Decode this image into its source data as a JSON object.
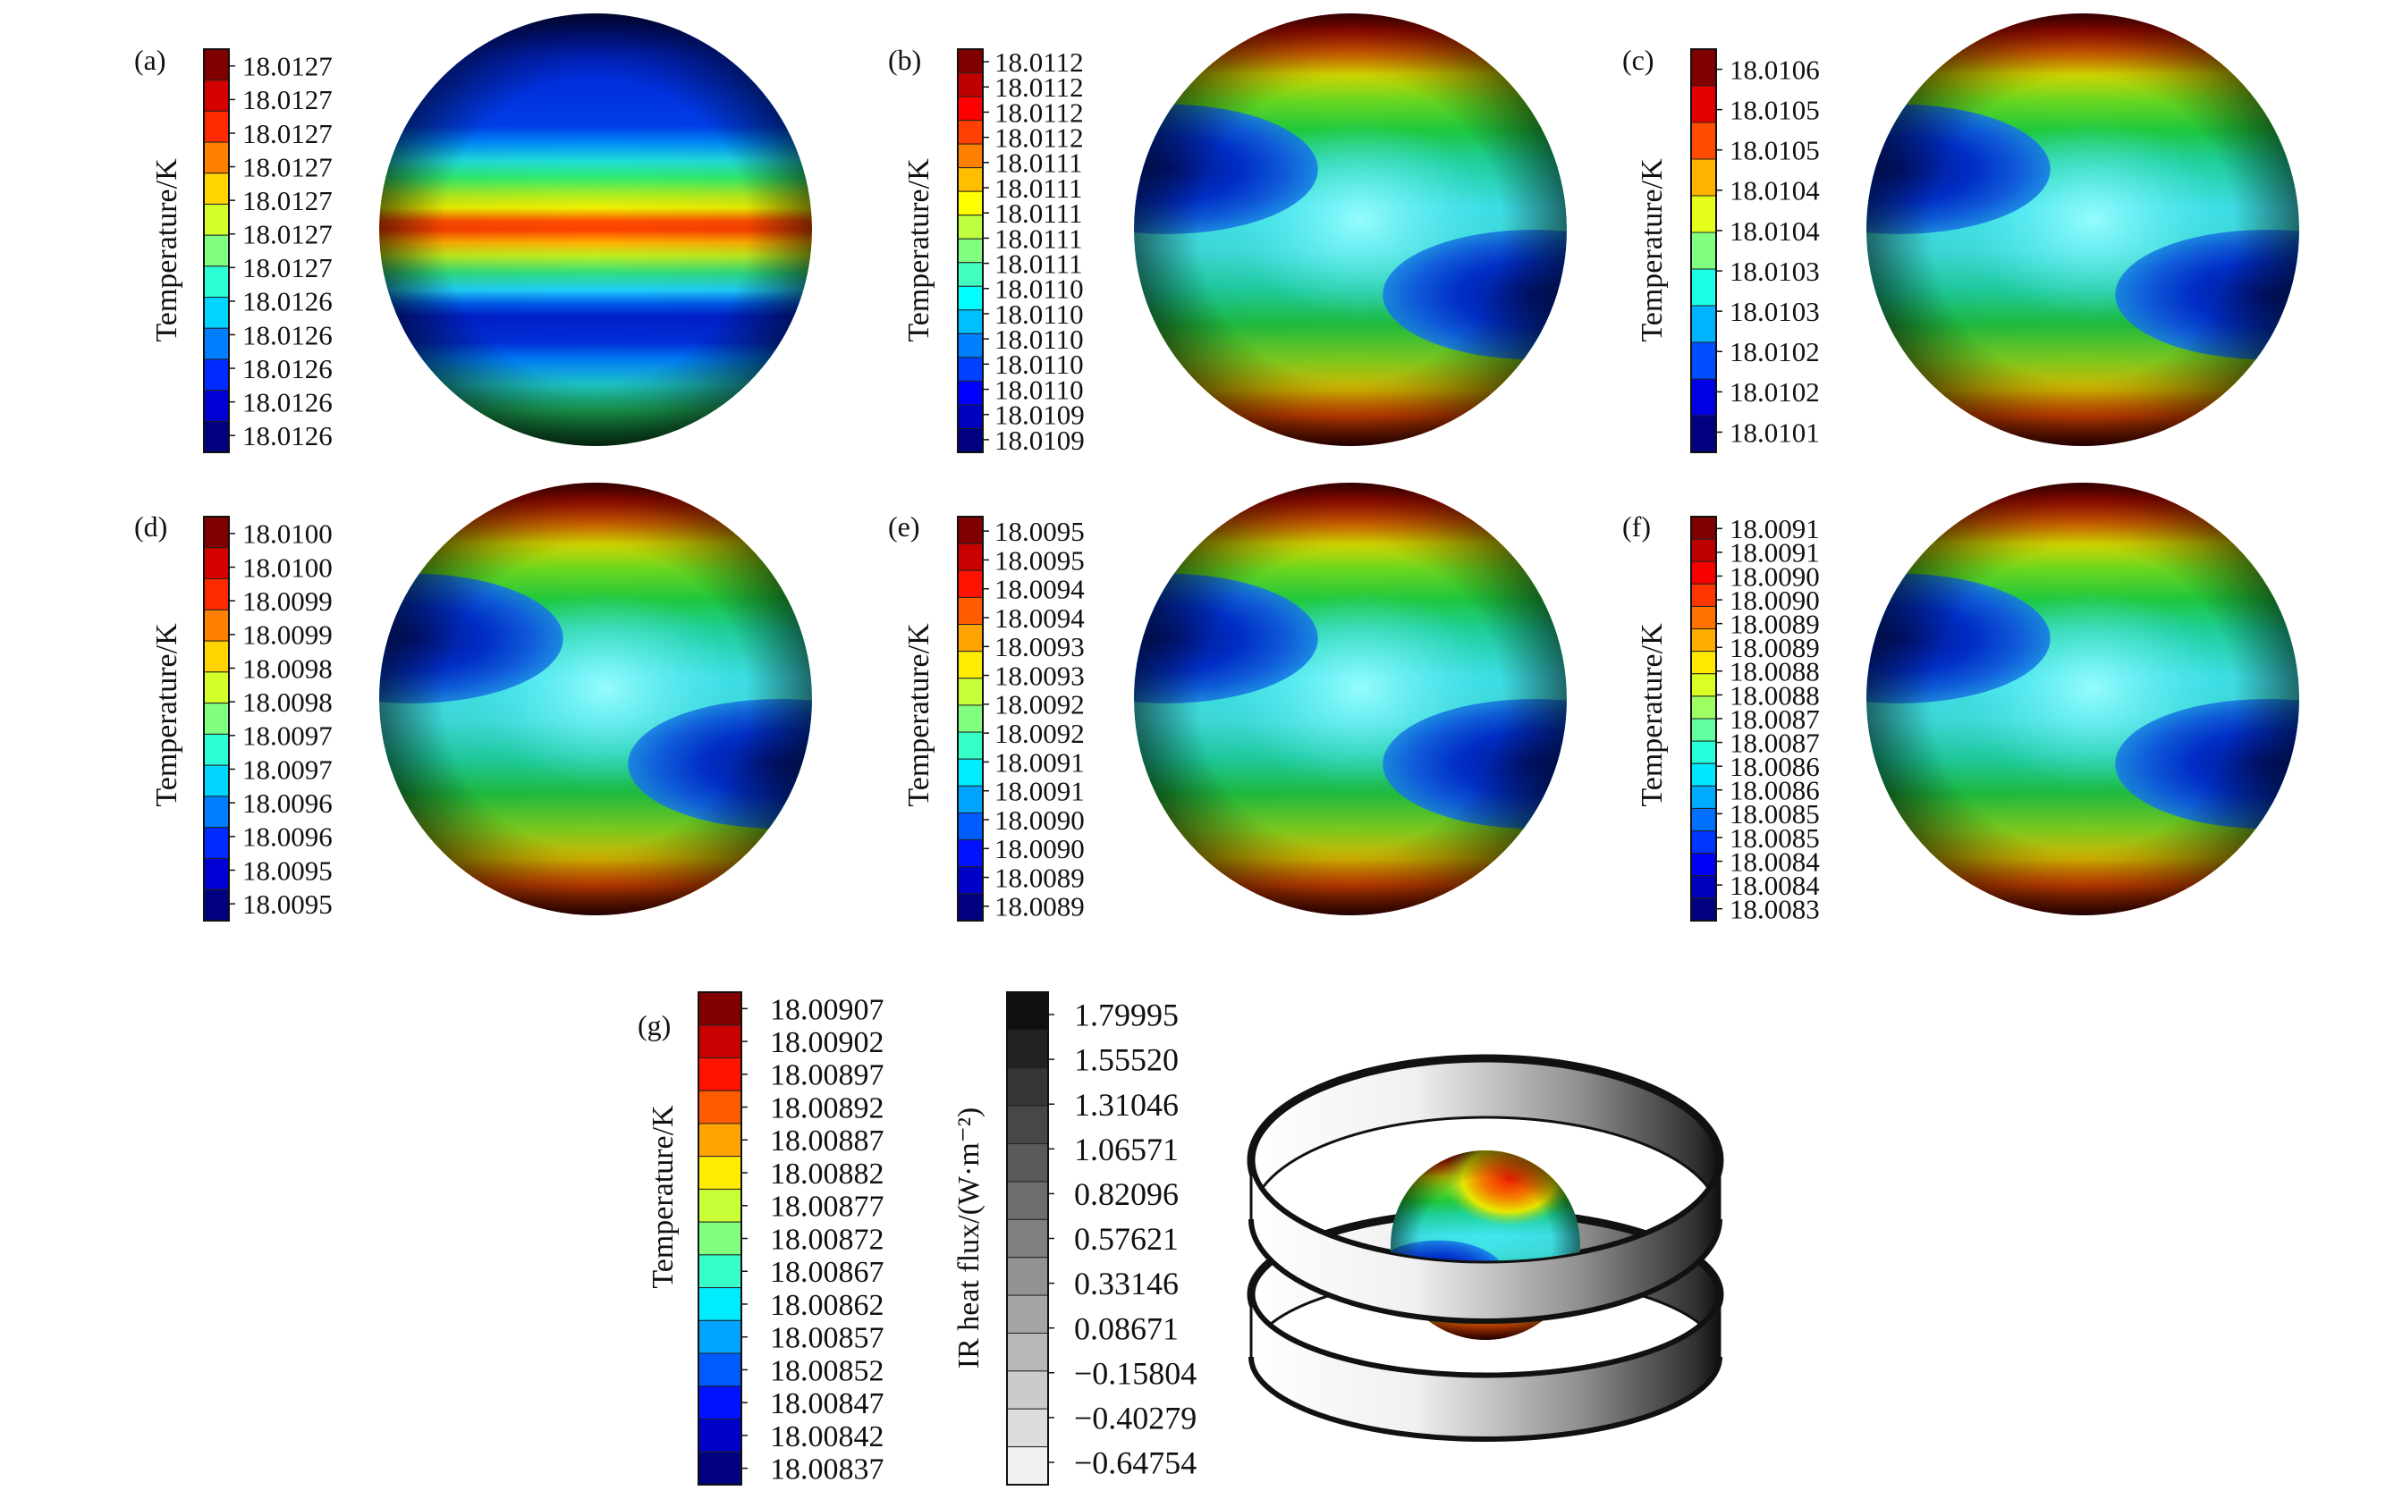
{
  "chart_data": [
    {
      "type": "heatmap",
      "panel_label": "(a)",
      "colorbar_label": "Temperature/K",
      "colormap": "jet",
      "pattern": "latitudinal bands, warm equator",
      "colorbar_ticks": [
        "18.0127",
        "18.0127",
        "18.0127",
        "18.0127",
        "18.0127",
        "18.0127",
        "18.0127",
        "18.0126",
        "18.0126",
        "18.0126",
        "18.0126",
        "18.0126"
      ]
    },
    {
      "type": "heatmap",
      "panel_label": "(b)",
      "colorbar_label": "Temperature/K",
      "colormap": "jet",
      "pattern": "warm poles, cool lobes",
      "colorbar_ticks": [
        "18.0112",
        "18.0112",
        "18.0112",
        "18.0112",
        "18.0111",
        "18.0111",
        "18.0111",
        "18.0111",
        "18.0111",
        "18.0110",
        "18.0110",
        "18.0110",
        "18.0110",
        "18.0110",
        "18.0109",
        "18.0109"
      ]
    },
    {
      "type": "heatmap",
      "panel_label": "(c)",
      "colorbar_label": "Temperature/K",
      "colormap": "jet",
      "pattern": "warm poles, cool lobes",
      "colorbar_ticks": [
        "18.0106",
        "18.0105",
        "18.0105",
        "18.0104",
        "18.0104",
        "18.0103",
        "18.0103",
        "18.0102",
        "18.0102",
        "18.0101"
      ]
    },
    {
      "type": "heatmap",
      "panel_label": "(d)",
      "colorbar_label": "Temperature/K",
      "colormap": "jet",
      "pattern": "warm poles, cool lobes",
      "colorbar_ticks": [
        "18.0100",
        "18.0100",
        "18.0099",
        "18.0099",
        "18.0098",
        "18.0098",
        "18.0097",
        "18.0097",
        "18.0096",
        "18.0096",
        "18.0095",
        "18.0095"
      ]
    },
    {
      "type": "heatmap",
      "panel_label": "(e)",
      "colorbar_label": "Temperature/K",
      "colormap": "jet",
      "pattern": "warm poles, cool lobes",
      "colorbar_ticks": [
        "18.0095",
        "18.0095",
        "18.0094",
        "18.0094",
        "18.0093",
        "18.0093",
        "18.0092",
        "18.0092",
        "18.0091",
        "18.0091",
        "18.0090",
        "18.0090",
        "18.0089",
        "18.0089"
      ]
    },
    {
      "type": "heatmap",
      "panel_label": "(f)",
      "colorbar_label": "Temperature/K",
      "colormap": "jet",
      "pattern": "warm poles, cool lobes",
      "colorbar_ticks": [
        "18.0091",
        "18.0091",
        "18.0090",
        "18.0090",
        "18.0089",
        "18.0089",
        "18.0088",
        "18.0088",
        "18.0087",
        "18.0087",
        "18.0086",
        "18.0086",
        "18.0085",
        "18.0085",
        "18.0084",
        "18.0084",
        "18.0083"
      ]
    },
    {
      "type": "heatmap",
      "panel_label": "(g)",
      "colorbar_label": "Temperature/K",
      "colormap": "jet",
      "pattern": "sphere inside two rings",
      "colorbar_ticks": [
        "18.00907",
        "18.00902",
        "18.00897",
        "18.00892",
        "18.00887",
        "18.00882",
        "18.00877",
        "18.00872",
        "18.00867",
        "18.00862",
        "18.00857",
        "18.00852",
        "18.00847",
        "18.00842",
        "18.00837"
      ],
      "secondary_colorbar": {
        "label": "IR heat flux/(W·m⁻²)",
        "colormap": "gray (black high, white low)",
        "ticks": [
          "1.79995",
          "1.55520",
          "1.31046",
          "1.06571",
          "0.82096",
          "0.57621",
          "0.33146",
          "0.08671",
          "−0.15804",
          "−0.40279",
          "−0.64754"
        ]
      }
    }
  ]
}
